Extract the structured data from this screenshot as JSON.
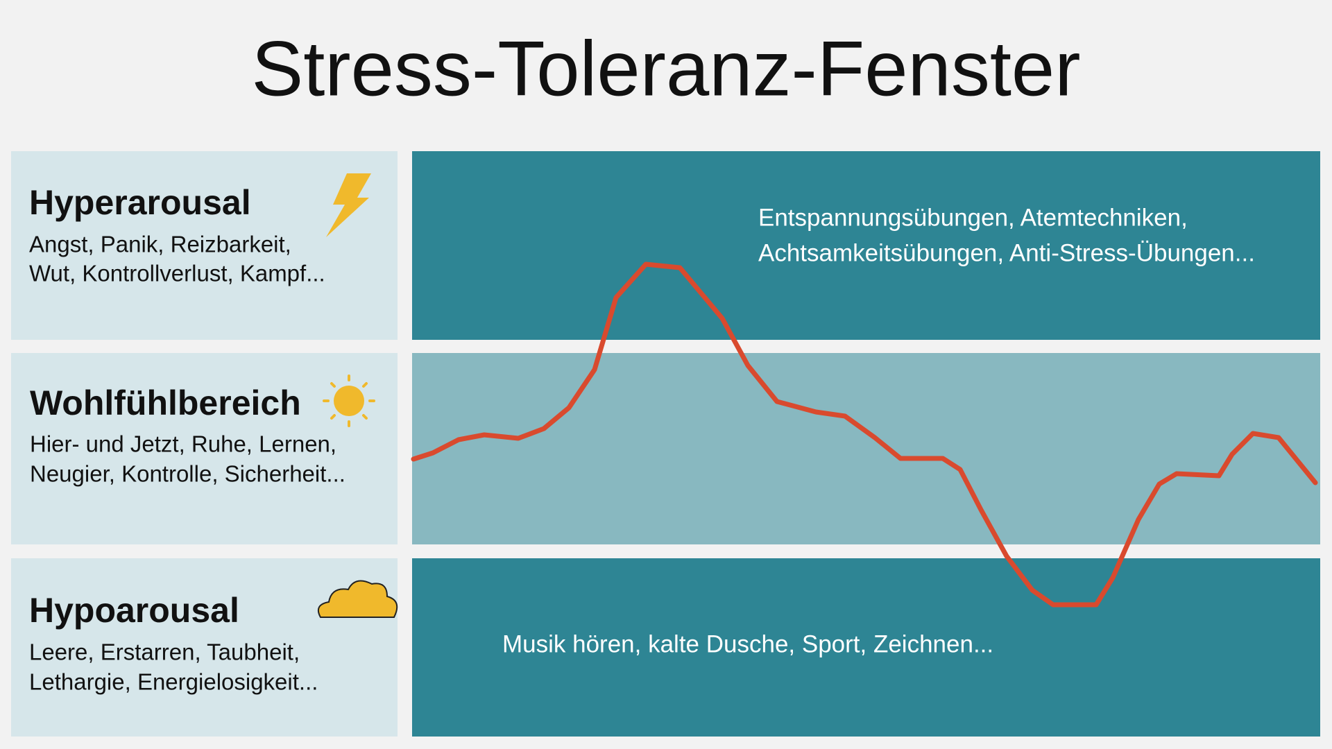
{
  "title": "Stress-Toleranz-Fenster",
  "zones": [
    {
      "title": "Hyperarousal",
      "lines": [
        "Angst, Panik, Reizbarkeit,",
        "Wut, Kontrollverlust, Kampf..."
      ]
    },
    {
      "title": "Wohlfühlbereich",
      "lines": [
        "Hier- und Jetzt, Ruhe, Lernen,",
        "Neugier, Kontrolle, Sicherheit..."
      ]
    },
    {
      "title": "Hypoarousal",
      "lines": [
        "Leere, Erstarren, Taubheit,",
        "Lethargie, Energielosigkeit..."
      ]
    }
  ],
  "hyper_help": [
    "Entspannungsübungen, Atemtechniken,",
    "Achtsamkeitsübungen, Anti-Stress-Übungen..."
  ],
  "hypo_help": [
    "Musik hören, kalte Dusche, Sport, Zeichnen..."
  ]
}
